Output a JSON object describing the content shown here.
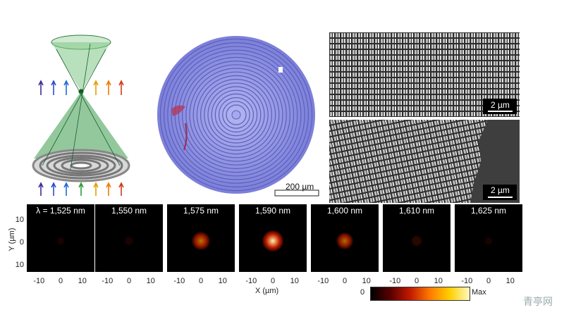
{
  "figure": {
    "sem_top_scale": "2 µm",
    "sem_bottom_scale": "2 µm",
    "optical_scale": "200 µm",
    "colorbar": {
      "min_label": "0",
      "max_label": "Max"
    },
    "axes": {
      "y_label": "Y (µm)",
      "x_label": "X (µm)",
      "y_ticks": [
        "10",
        "0",
        "10"
      ],
      "x_ticks": [
        "-10",
        "0",
        "10"
      ]
    },
    "frames": [
      {
        "label": "λ = 1,525 nm",
        "intensity": 0.04
      },
      {
        "label": "1,550 nm",
        "intensity": 0.08
      },
      {
        "label": "1,575 nm",
        "intensity": 0.75
      },
      {
        "label": "1,590 nm",
        "intensity": 1.0
      },
      {
        "label": "1,600 nm",
        "intensity": 0.7
      },
      {
        "label": "1,610 nm",
        "intensity": 0.22
      },
      {
        "label": "1,625 nm",
        "intensity": 0.05
      }
    ],
    "watermark": "青亭网"
  },
  "colors": {
    "lens_purple": "#8b8ce0",
    "cone_green": "#3a9a4c",
    "hot_center": "#fff3a0",
    "hot_mid": "#ff9a00",
    "hot_outer": "#c21a00"
  }
}
